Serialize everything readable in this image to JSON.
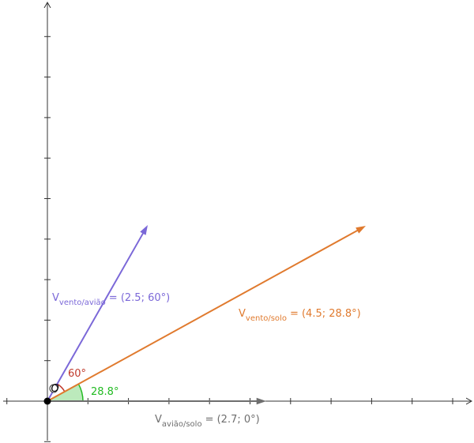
{
  "vectors": [
    {
      "name": "V",
      "subscript": "vento/avião",
      "value": "= (2.5; 60°)",
      "color": "#7b68d8"
    },
    {
      "name": "V",
      "subscript": "vento/solo",
      "value": "= (4.5; 28.8°)",
      "color": "#e07a2e"
    },
    {
      "name": "V",
      "subscript": "avião/solo",
      "value": "= (2.7; 0°)",
      "color": "#6e6e6e"
    }
  ],
  "angles": [
    {
      "label": "60°",
      "color": "#c0392b"
    },
    {
      "label": "28.8°",
      "color": "#22bb22"
    }
  ],
  "point": "O"
}
